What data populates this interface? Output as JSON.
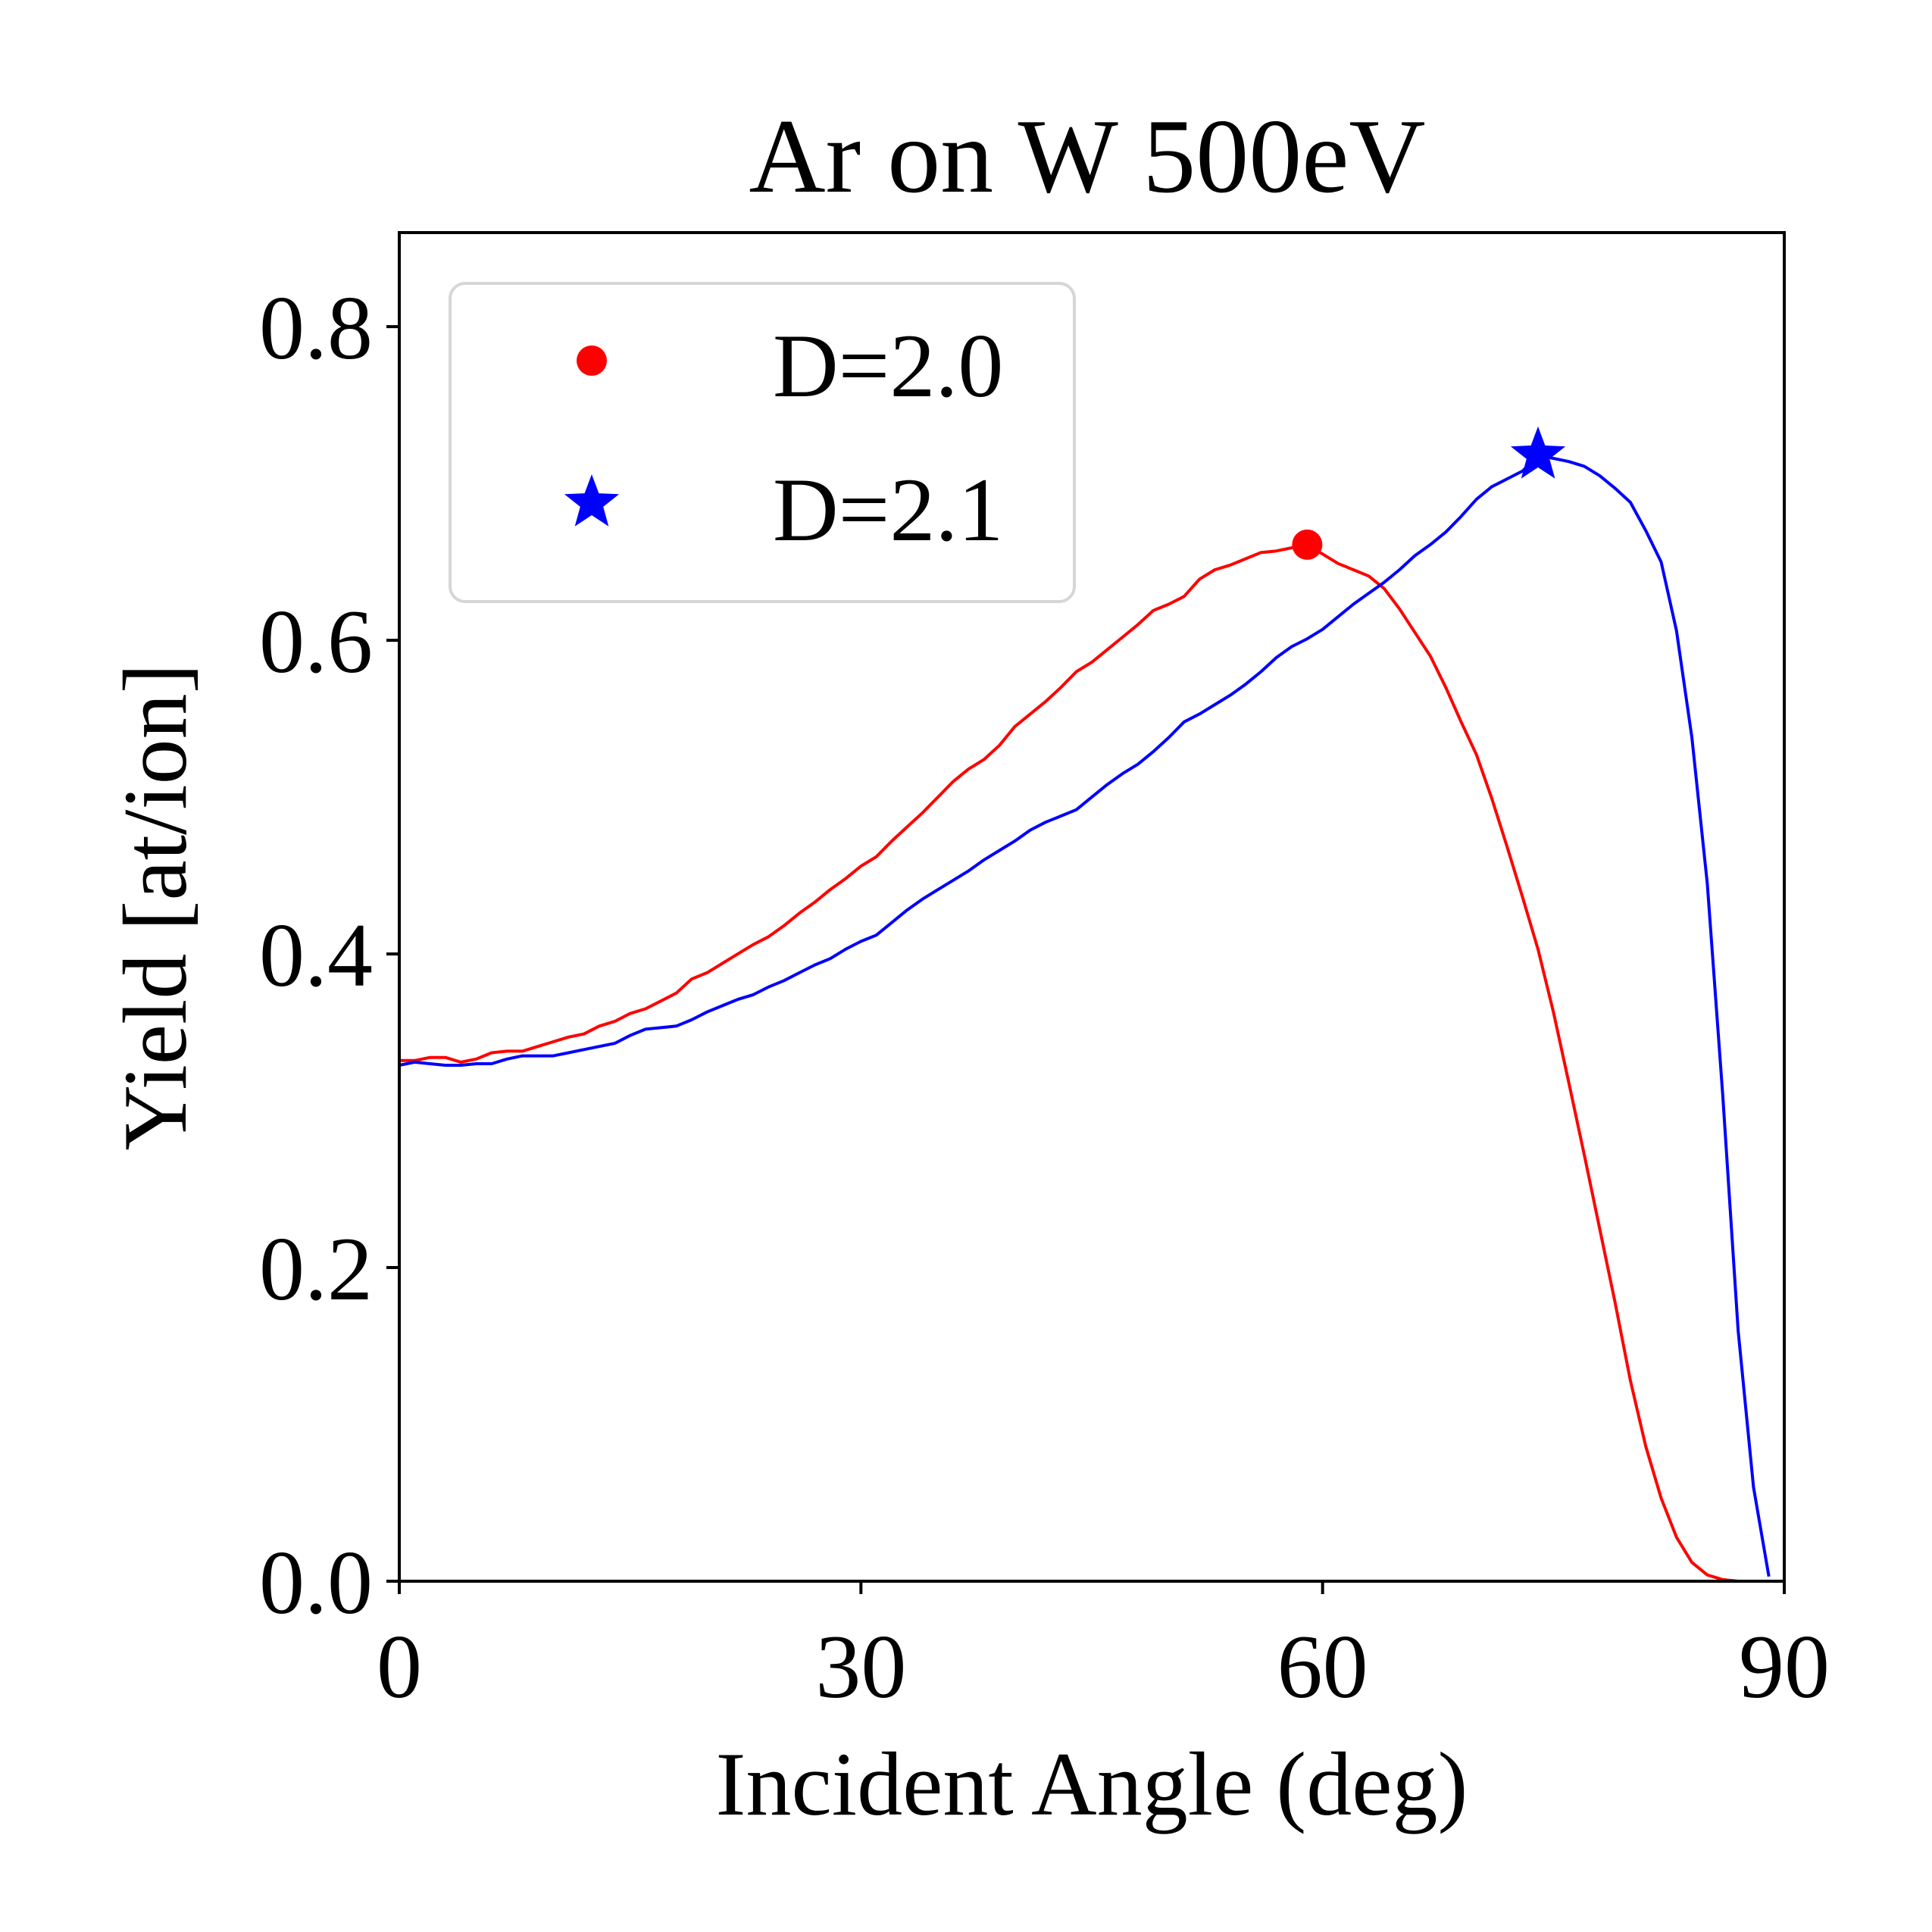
{
  "chart_data": {
    "type": "line",
    "title": "Ar on W 500eV",
    "xlabel": "Incident Angle (deg)",
    "ylabel": "Yield [at/ion]",
    "xlim": [
      0,
      90
    ],
    "ylim": [
      0,
      0.86
    ],
    "xticks": [
      0,
      30,
      60,
      90
    ],
    "xtick_labels": [
      "0",
      "30",
      "60",
      "90"
    ],
    "yticks": [
      0.0,
      0.2,
      0.4,
      0.6,
      0.8
    ],
    "ytick_labels": [
      "0.0",
      "0.2",
      "0.4",
      "0.6",
      "0.8"
    ],
    "grid": false,
    "legend_position": "upper-left",
    "series": [
      {
        "name": "D=2.0",
        "color": "#ff0000",
        "marker": "circle",
        "peak": {
          "x": 59,
          "y": 0.661
        },
        "x": [
          0,
          1,
          2,
          3,
          4,
          5,
          6,
          7,
          8,
          9,
          10,
          11,
          12,
          13,
          14,
          15,
          16,
          17,
          18,
          19,
          20,
          21,
          22,
          23,
          24,
          25,
          26,
          27,
          28,
          29,
          30,
          31,
          32,
          33,
          34,
          35,
          36,
          37,
          38,
          39,
          40,
          41,
          42,
          43,
          44,
          45,
          46,
          47,
          48,
          49,
          50,
          51,
          52,
          53,
          54,
          55,
          56,
          57,
          58,
          59,
          60,
          61,
          62,
          63,
          64,
          65,
          66,
          67,
          68,
          69,
          70,
          71,
          72,
          73,
          74,
          75,
          76,
          77,
          78,
          79,
          80,
          81,
          82,
          83,
          84,
          85,
          86,
          87,
          88,
          89
        ],
        "y": [
          0.332,
          0.332,
          0.334,
          0.334,
          0.331,
          0.333,
          0.337,
          0.338,
          0.338,
          0.341,
          0.344,
          0.347,
          0.349,
          0.354,
          0.357,
          0.362,
          0.365,
          0.37,
          0.375,
          0.384,
          0.388,
          0.394,
          0.4,
          0.406,
          0.411,
          0.418,
          0.426,
          0.433,
          0.441,
          0.448,
          0.456,
          0.462,
          0.472,
          0.481,
          0.49,
          0.5,
          0.51,
          0.518,
          0.524,
          0.533,
          0.545,
          0.553,
          0.561,
          0.57,
          0.58,
          0.586,
          0.594,
          0.602,
          0.61,
          0.619,
          0.623,
          0.628,
          0.639,
          0.645,
          0.648,
          0.652,
          0.656,
          0.657,
          0.659,
          0.661,
          0.655,
          0.649,
          0.645,
          0.641,
          0.633,
          0.62,
          0.605,
          0.59,
          0.57,
          0.548,
          0.527,
          0.499,
          0.468,
          0.436,
          0.403,
          0.363,
          0.318,
          0.272,
          0.225,
          0.178,
          0.128,
          0.086,
          0.053,
          0.028,
          0.012,
          0.004,
          0.001,
          0.0,
          0.0,
          0.0
        ]
      },
      {
        "name": "D=2.1",
        "color": "#0000ff",
        "marker": "star",
        "peak": {
          "x": 74,
          "y": 0.718
        },
        "x": [
          0,
          1,
          2,
          3,
          4,
          5,
          6,
          7,
          8,
          9,
          10,
          11,
          12,
          13,
          14,
          15,
          16,
          17,
          18,
          19,
          20,
          21,
          22,
          23,
          24,
          25,
          26,
          27,
          28,
          29,
          30,
          31,
          32,
          33,
          34,
          35,
          36,
          37,
          38,
          39,
          40,
          41,
          42,
          43,
          44,
          45,
          46,
          47,
          48,
          49,
          50,
          51,
          52,
          53,
          54,
          55,
          56,
          57,
          58,
          59,
          60,
          61,
          62,
          63,
          64,
          65,
          66,
          67,
          68,
          69,
          70,
          71,
          72,
          73,
          74,
          75,
          76,
          77,
          78,
          79,
          80,
          81,
          82,
          83,
          84,
          85,
          86,
          87,
          88,
          89
        ],
        "y": [
          0.329,
          0.331,
          0.33,
          0.329,
          0.329,
          0.33,
          0.33,
          0.333,
          0.335,
          0.335,
          0.335,
          0.337,
          0.339,
          0.341,
          0.343,
          0.348,
          0.352,
          0.353,
          0.354,
          0.358,
          0.363,
          0.367,
          0.371,
          0.374,
          0.379,
          0.383,
          0.388,
          0.393,
          0.397,
          0.403,
          0.408,
          0.412,
          0.42,
          0.428,
          0.435,
          0.441,
          0.447,
          0.453,
          0.46,
          0.466,
          0.472,
          0.479,
          0.484,
          0.488,
          0.492,
          0.5,
          0.508,
          0.515,
          0.521,
          0.529,
          0.538,
          0.548,
          0.553,
          0.559,
          0.565,
          0.572,
          0.58,
          0.589,
          0.596,
          0.601,
          0.607,
          0.615,
          0.623,
          0.63,
          0.637,
          0.645,
          0.654,
          0.661,
          0.669,
          0.679,
          0.69,
          0.698,
          0.703,
          0.708,
          0.718,
          0.716,
          0.714,
          0.711,
          0.705,
          0.697,
          0.688,
          0.67,
          0.65,
          0.606,
          0.538,
          0.445,
          0.31,
          0.16,
          0.06,
          0.003
        ]
      }
    ]
  }
}
